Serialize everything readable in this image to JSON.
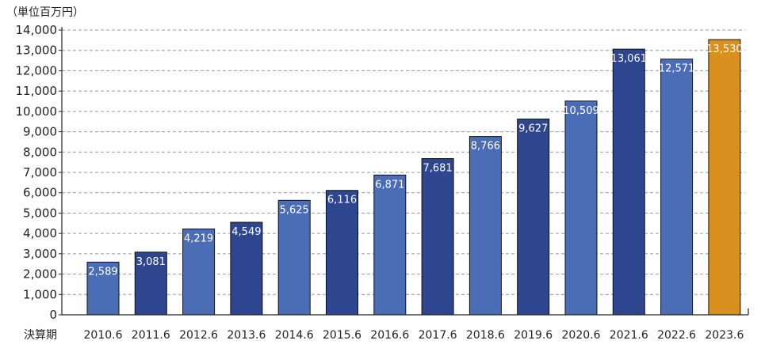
{
  "chart_data": {
    "type": "bar",
    "unit_label": "（単位百万円）",
    "x_axis_label": "決算期",
    "categories": [
      "2010.6",
      "2011.6",
      "2012.6",
      "2013.6",
      "2014.6",
      "2015.6",
      "2016.6",
      "2017.6",
      "2018.6",
      "2019.6",
      "2020.6",
      "2021.6",
      "2022.6",
      "2023.6"
    ],
    "values": [
      2589,
      3081,
      4219,
      4549,
      5625,
      6116,
      6871,
      7681,
      8766,
      9627,
      10509,
      13061,
      12571,
      13530
    ],
    "value_labels": [
      "2,589",
      "3,081",
      "4,219",
      "4,549",
      "5,625",
      "6,116",
      "6,871",
      "7,681",
      "8,766",
      "9,627",
      "10,509",
      "13,061",
      "12,571",
      "13,530"
    ],
    "y_ticks": [
      0,
      1000,
      2000,
      3000,
      4000,
      5000,
      6000,
      7000,
      8000,
      9000,
      10000,
      11000,
      12000,
      13000,
      14000
    ],
    "y_tick_labels": [
      "0",
      "1,000",
      "2,000",
      "3,000",
      "4,000",
      "5,000",
      "6,000",
      "7,000",
      "8,000",
      "9,000",
      "10,000",
      "11,000",
      "12,000",
      "13,000",
      "14,000"
    ],
    "ylim": [
      0,
      14000
    ],
    "grid": true,
    "highlight_index": 13,
    "colors": {
      "bar_light": "#4a6db5",
      "bar_dark": "#2e4590",
      "bar_highlight": "#d9901e",
      "highlight_label": "#cc2222",
      "grid": "#999999",
      "axis": "#222222"
    }
  }
}
